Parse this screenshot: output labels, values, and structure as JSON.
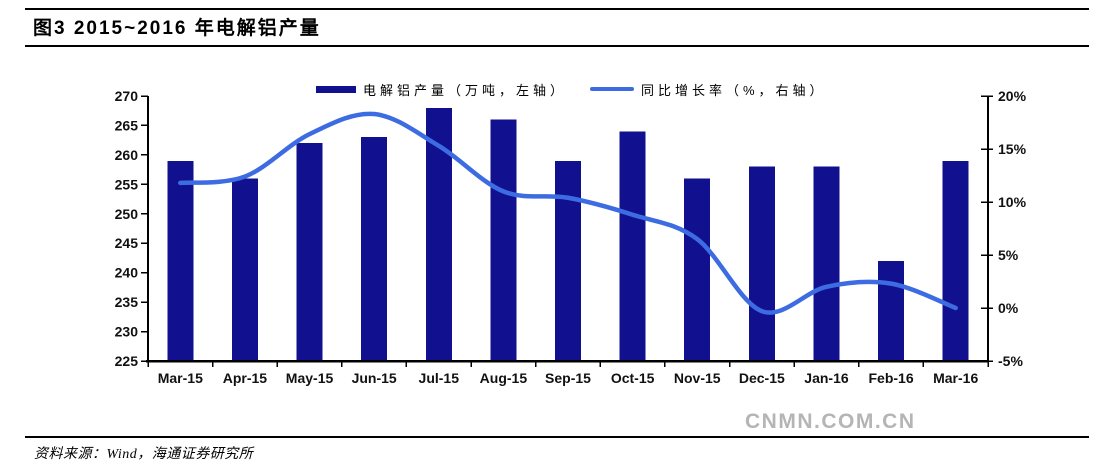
{
  "figure": {
    "title": "图3  2015~2016 年电解铝产量"
  },
  "legend": {
    "items": [
      {
        "label": "电解铝产量（万吨，左轴）"
      },
      {
        "label": "同比增长率（%，右轴）"
      }
    ]
  },
  "chart_data": {
    "type": "bar+line",
    "title": "图3 2015~2016 年电解铝产量",
    "categories": [
      "Mar-15",
      "Apr-15",
      "May-15",
      "Jun-15",
      "Jul-15",
      "Aug-15",
      "Sep-15",
      "Oct-15",
      "Nov-15",
      "Dec-15",
      "Jan-16",
      "Feb-16",
      "Mar-16"
    ],
    "series": [
      {
        "name": "电解铝产量（万吨，左轴）",
        "type": "bar",
        "axis": "left",
        "color": "#11118F",
        "values": [
          259,
          256,
          262,
          263,
          268,
          266,
          259,
          264,
          256,
          258,
          258,
          242,
          259
        ]
      },
      {
        "name": "同比增长率（%，右轴）",
        "type": "line",
        "axis": "right",
        "color": "#3D6CE2",
        "values": [
          11.8,
          12.4,
          16.4,
          18.3,
          15.3,
          11.0,
          10.4,
          8.8,
          6.5,
          -0.3,
          2.0,
          2.3,
          0.0
        ]
      }
    ],
    "left_axis": {
      "min": 225,
      "max": 270,
      "step": 5,
      "tick_labels": [
        "270",
        "265",
        "260",
        "255",
        "250",
        "245",
        "240",
        "235",
        "230",
        "225"
      ]
    },
    "right_axis": {
      "min": -5,
      "max": 20,
      "step": 5,
      "tick_labels": [
        "20%",
        "15%",
        "10%",
        "5%",
        "0%",
        "-5%"
      ]
    },
    "grid": false,
    "legend_position": "top"
  },
  "watermark": "CNMN.COM.CN",
  "footer": {
    "source": "资料来源：Wind，海通证券研究所"
  }
}
